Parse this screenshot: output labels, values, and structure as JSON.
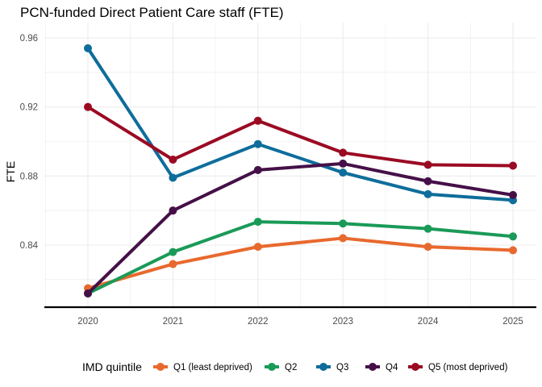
{
  "chart_data": {
    "type": "line",
    "title": "PCN-funded Direct Patient Care staff (FTE)",
    "xlabel": "",
    "ylabel": "FTE",
    "x": [
      "2020",
      "2021",
      "2022",
      "2023",
      "2024",
      "2025"
    ],
    "xlim": [
      2020,
      2025
    ],
    "ylim": [
      0.805,
      0.962
    ],
    "yticks": [
      0.84,
      0.88,
      0.92,
      0.96
    ],
    "ytick_labels": [
      "0.84",
      "0.88",
      "0.92",
      "0.96"
    ],
    "grid": true,
    "legend": {
      "title": "IMD quintile",
      "placement": "bottom"
    },
    "series": [
      {
        "name": "Q1 (least deprived)",
        "color": "#e8692d",
        "values": [
          0.815,
          0.829,
          0.839,
          0.844,
          0.839,
          0.837
        ]
      },
      {
        "name": "Q2",
        "color": "#1a9a58",
        "values": [
          0.812,
          0.836,
          0.8535,
          0.8525,
          0.8495,
          0.845
        ]
      },
      {
        "name": "Q3",
        "color": "#0e6d9b",
        "values": [
          0.954,
          0.879,
          0.8985,
          0.882,
          0.8695,
          0.866
        ]
      },
      {
        "name": "Q4",
        "color": "#451048",
        "values": [
          0.812,
          0.86,
          0.8835,
          0.8872,
          0.877,
          0.869
        ]
      },
      {
        "name": "Q5 (most deprived)",
        "color": "#9b0a23",
        "values": [
          0.92,
          0.8895,
          0.912,
          0.8935,
          0.8865,
          0.886
        ]
      }
    ]
  }
}
